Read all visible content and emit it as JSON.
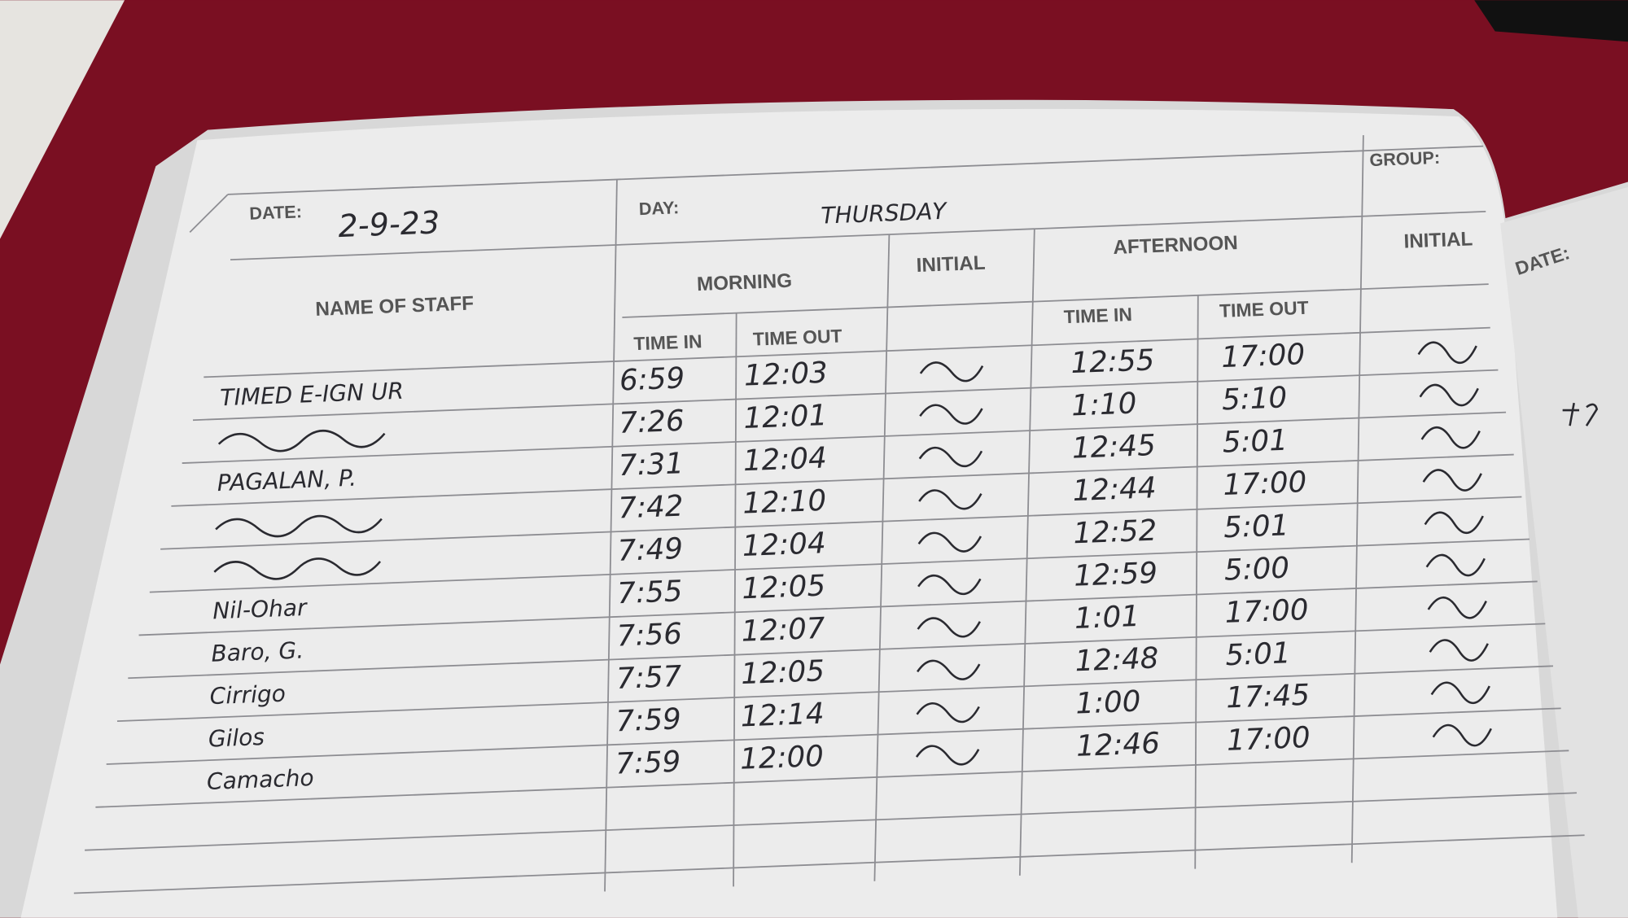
{
  "header": {
    "date_label": "DATE:",
    "date_value": "2-9-23",
    "day_label": "DAY:",
    "day_value": "THURSDAY",
    "group_label": "GROUP:",
    "next_page_date_label": "DATE:"
  },
  "columns": {
    "name": "NAME OF STAFF",
    "morning": "MORNING",
    "initial": "INITIAL",
    "afternoon": "AFTERNOON",
    "initial2": "INITIAL",
    "time_in": "TIME IN",
    "time_out": "TIME OUT"
  },
  "rows": [
    {
      "name": "TIMED E-IGN UR",
      "am_in": "6:59",
      "am_out": "12:03",
      "pm_in": "12:55",
      "pm_out": "17:00"
    },
    {
      "name": "",
      "am_in": "7:26",
      "am_out": "12:01",
      "pm_in": "1:10",
      "pm_out": "5:10"
    },
    {
      "name": "PAGALAN, P.",
      "am_in": "7:31",
      "am_out": "12:04",
      "pm_in": "12:45",
      "pm_out": "5:01"
    },
    {
      "name": "",
      "am_in": "7:42",
      "am_out": "12:10",
      "pm_in": "12:44",
      "pm_out": "17:00"
    },
    {
      "name": "",
      "am_in": "7:49",
      "am_out": "12:04",
      "pm_in": "12:52",
      "pm_out": "5:01"
    },
    {
      "name": "Nil-Ohar",
      "am_in": "7:55",
      "am_out": "12:05",
      "pm_in": "12:59",
      "pm_out": "5:00"
    },
    {
      "name": "Baro, G.",
      "am_in": "7:56",
      "am_out": "12:07",
      "pm_in": "1:01",
      "pm_out": "17:00"
    },
    {
      "name": "Cirrigo",
      "am_in": "7:57",
      "am_out": "12:05",
      "pm_in": "12:48",
      "pm_out": "5:01"
    },
    {
      "name": "Gilos",
      "am_in": "7:59",
      "am_out": "12:14",
      "pm_in": "1:00",
      "pm_out": "17:45"
    },
    {
      "name": "Camacho",
      "am_in": "7:59",
      "am_out": "12:00",
      "pm_in": "12:46",
      "pm_out": "17:00"
    }
  ],
  "colors": {
    "table_cover": "#7a0f22",
    "paper": "#ececec",
    "ink": "#2a2a30",
    "print": "#555555"
  }
}
